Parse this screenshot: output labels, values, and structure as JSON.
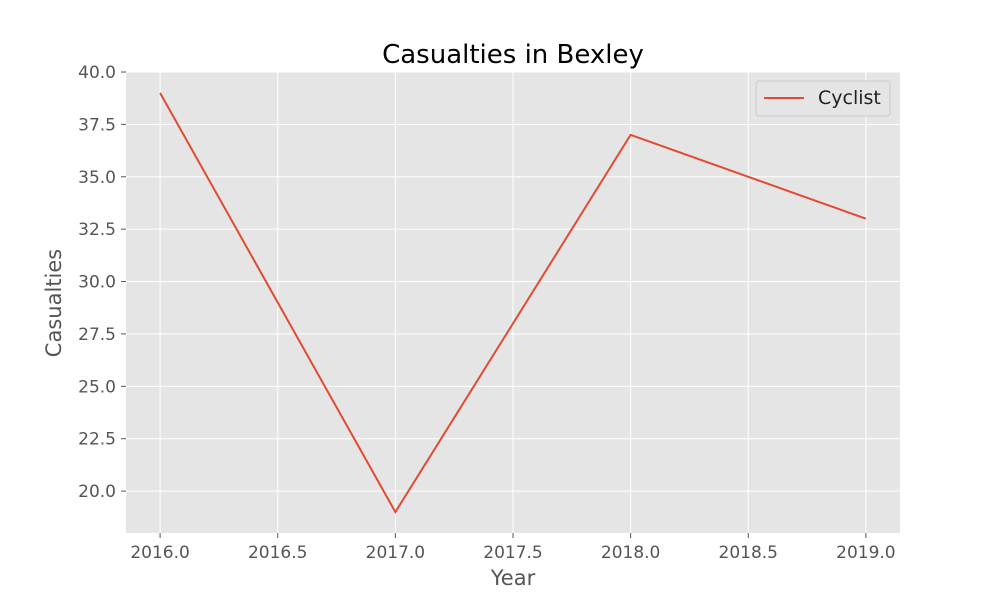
{
  "chart_data": {
    "type": "line",
    "title": "Casualties in Bexley",
    "xlabel": "Year",
    "ylabel": "Casualties",
    "xlim": [
      2015.855,
      2019.145
    ],
    "ylim": [
      18.0,
      40.0
    ],
    "x_ticks": [
      2016.0,
      2016.5,
      2017.0,
      2017.5,
      2018.0,
      2018.5,
      2019.0
    ],
    "x_tick_labels": [
      "2016.0",
      "2016.5",
      "2017.0",
      "2017.5",
      "2018.0",
      "2018.5",
      "2019.0"
    ],
    "y_ticks": [
      20.0,
      22.5,
      25.0,
      27.5,
      30.0,
      32.5,
      35.0,
      37.5,
      40.0
    ],
    "y_tick_labels": [
      "20.0",
      "22.5",
      "25.0",
      "27.5",
      "30.0",
      "32.5",
      "35.0",
      "37.5",
      "40.0"
    ],
    "grid": true,
    "legend_position": "top-right",
    "series": [
      {
        "name": "Cyclist",
        "color": "#E24A33",
        "x": [
          2016,
          2017,
          2018,
          2019
        ],
        "y": [
          39,
          19,
          37,
          33
        ]
      }
    ]
  },
  "colors": {
    "plot_background": "#E5E5E5",
    "grid": "#FFFFFF",
    "text": "#555555"
  }
}
